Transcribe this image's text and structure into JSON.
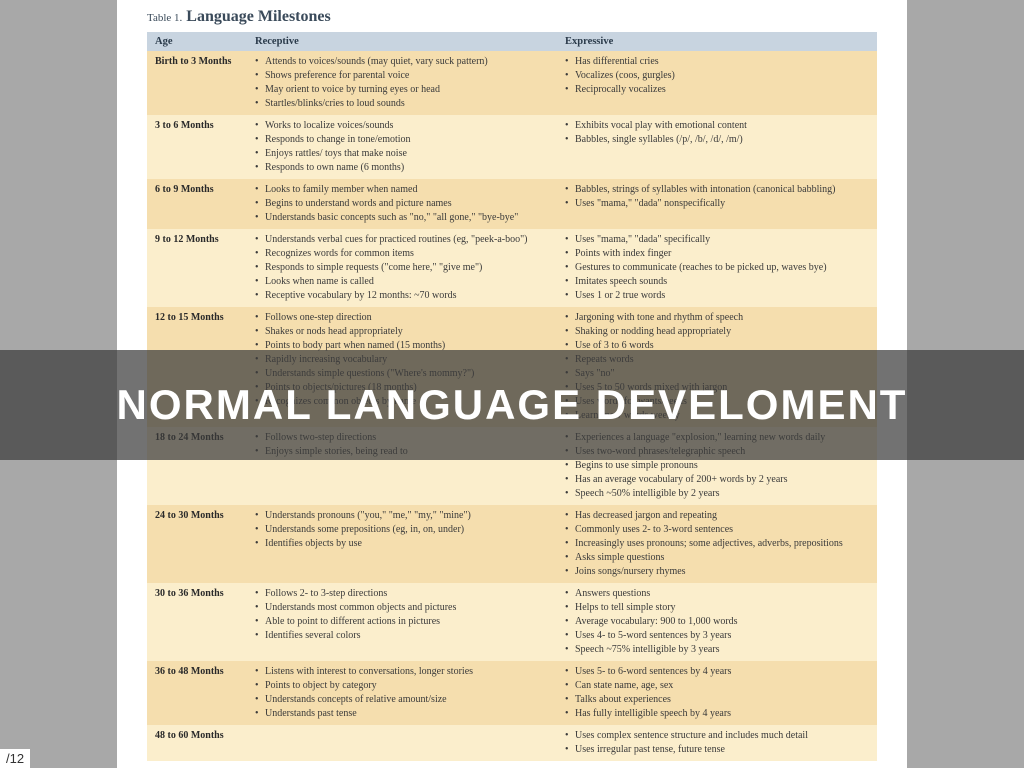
{
  "title_prefix": "Table 1.",
  "title": "Language Milestones",
  "overlay_text": "NORMAL LANGUAGE DEVELOMENT",
  "page_number": "/12",
  "columns": [
    "Age",
    "Receptive",
    "Expressive"
  ],
  "rows": [
    {
      "age": "Birth to 3 Months",
      "receptive": [
        "Attends to voices/sounds (may quiet, vary suck pattern)",
        "Shows preference for parental voice",
        "May orient to voice by turning eyes or head",
        "Startles/blinks/cries to loud sounds"
      ],
      "expressive": [
        "Has differential cries",
        "Vocalizes (coos, gurgles)",
        "Reciprocally vocalizes"
      ]
    },
    {
      "age": "3 to 6 Months",
      "receptive": [
        "Works to localize voices/sounds",
        "Responds to change in tone/emotion",
        "Enjoys rattles/ toys that make noise",
        "Responds to own name (6 months)"
      ],
      "expressive": [
        "Exhibits vocal play with emotional content",
        "Babbles, single syllables (/p/, /b/, /d/, /m/)"
      ]
    },
    {
      "age": "6 to 9 Months",
      "receptive": [
        "Looks to family member when named",
        "Begins to understand words and picture names",
        "Understands basic concepts such as \"no,\" \"all gone,\" \"bye-bye\""
      ],
      "expressive": [
        "Babbles, strings of syllables with intonation (canonical babbling)",
        "Uses \"mama,\" \"dada\" nonspecifically"
      ]
    },
    {
      "age": "9 to 12 Months",
      "receptive": [
        "Understands verbal cues for practiced routines (eg, \"peek-a-boo\")",
        "Recognizes words for common items",
        "Responds to simple requests (\"come here,\" \"give me\")",
        "Looks when name is called",
        "Receptive vocabulary by 12 months: ~70 words"
      ],
      "expressive": [
        "Uses \"mama,\" \"dada\" specifically",
        "Points with index finger",
        "Gestures to communicate (reaches to be picked up, waves bye)",
        "Imitates speech sounds",
        "Uses 1 or 2 true words"
      ]
    },
    {
      "age": "12 to 15 Months",
      "receptive": [
        "Follows one-step direction",
        "Shakes or nods head appropriately",
        "Points to body part when named (15 months)",
        "Rapidly increasing vocabulary",
        "Understands simple questions (\"Where's mommy?\")",
        "Points to objects/pictures (18 months)",
        "Recognizes common objects by name"
      ],
      "expressive": [
        "Jargoning with tone and rhythm of speech",
        "Shaking or nodding head appropriately",
        "Use of 3 to 6 words",
        "Repeats words",
        "Says \"no\"",
        "Uses 5 to 50 words mixed with jargon",
        "Uses words for wants/needs",
        "Learns new words weekly"
      ]
    },
    {
      "age": "18 to 24 Months",
      "receptive": [
        "Follows two-step directions",
        "Enjoys simple stories, being read to"
      ],
      "expressive": [
        "Experiences a language \"explosion,\" learning new words daily",
        "Uses two-word phrases/telegraphic speech",
        "Begins to use simple pronouns",
        "Has an average vocabulary of 200+ words by 2 years",
        "Speech ~50% intelligible by 2 years"
      ]
    },
    {
      "age": "24 to 30 Months",
      "receptive": [
        "Understands pronouns (\"you,\" \"me,\" \"my,\" \"mine\")",
        "Understands some prepositions (eg, in, on, under)",
        "Identifies objects by use"
      ],
      "expressive": [
        "Has decreased jargon and repeating",
        "Commonly uses 2- to 3-word sentences",
        "Increasingly uses pronouns; some adjectives, adverbs, prepositions",
        "Asks simple questions",
        "Joins songs/nursery rhymes"
      ]
    },
    {
      "age": "30 to 36 Months",
      "receptive": [
        "Follows 2- to 3-step directions",
        "Understands most common objects and pictures",
        "Able to point to different actions in pictures",
        "Identifies several colors"
      ],
      "expressive": [
        "Answers questions",
        "Helps to tell simple story",
        "Average vocabulary: 900 to 1,000 words",
        "Uses 4- to 5-word sentences by 3 years",
        "Speech ~75% intelligible by 3 years"
      ]
    },
    {
      "age": "36 to 48 Months",
      "receptive": [
        "Listens with interest to conversations, longer stories",
        "Points to object by category",
        "Understands concepts of relative amount/size",
        "Understands past tense"
      ],
      "expressive": [
        "Uses 5- to 6-word sentences by 4 years",
        "Can state name, age, sex",
        "Talks about experiences",
        "Has fully intelligible speech by 4 years"
      ]
    },
    {
      "age": "48 to 60 Months",
      "receptive": [],
      "expressive": [
        "Uses complex sentence structure and includes much detail",
        "Uses irregular past tense, future tense"
      ]
    }
  ]
}
